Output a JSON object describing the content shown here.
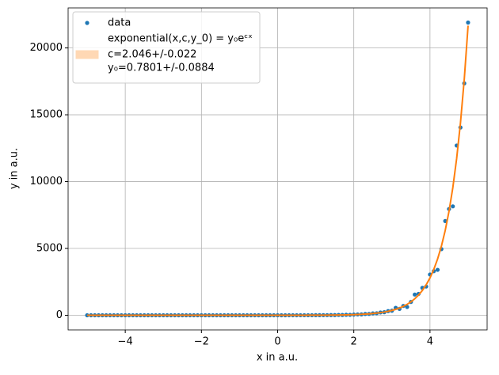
{
  "chart_data": {
    "type": "scatter",
    "xlabel": "x in a.u.",
    "ylabel": "y in a.u.",
    "xlim": [
      -5.5,
      5.5
    ],
    "ylim": [
      -1095,
      22995
    ],
    "xticks": [
      {
        "value": -4,
        "label": "−4"
      },
      {
        "value": -2,
        "label": "−2"
      },
      0,
      2,
      4
    ],
    "yticks": [
      0,
      5000,
      10000,
      15000,
      20000
    ],
    "grid": true,
    "legend": "upper left",
    "x": [
      -5,
      -4.9,
      -4.8,
      -4.7,
      -4.6,
      -4.5,
      -4.4,
      -4.3,
      -4.2,
      -4.1,
      -4,
      -3.9,
      -3.8,
      -3.7,
      -3.6,
      -3.5,
      -3.4,
      -3.3,
      -3.2,
      -3.1,
      -3,
      -2.9,
      -2.8,
      -2.7,
      -2.6,
      -2.5,
      -2.4,
      -2.3,
      -2.2,
      -2.1,
      -2,
      -1.9,
      -1.8,
      -1.7,
      -1.6,
      -1.5,
      -1.4,
      -1.3,
      -1.2,
      -1.1,
      -1,
      -0.9,
      -0.8,
      -0.7,
      -0.6,
      -0.5,
      -0.4,
      -0.3,
      -0.2,
      -0.1,
      0,
      0.1,
      0.2,
      0.3,
      0.4,
      0.5,
      0.6,
      0.7,
      0.8,
      0.9,
      1,
      1.1,
      1.2,
      1.3,
      1.4,
      1.5,
      1.6,
      1.7,
      1.8,
      1.9,
      2,
      2.1,
      2.2,
      2.3,
      2.4,
      2.5,
      2.6,
      2.7,
      2.8,
      2.9,
      3,
      3.1,
      3.2,
      3.3,
      3.4,
      3.5,
      3.6,
      3.7,
      3.8,
      3.9,
      4,
      4.1,
      4.2,
      4.3,
      4.4,
      4.5,
      4.6,
      4.7,
      4.8,
      4.9,
      5
    ],
    "series": [
      {
        "name": "data",
        "kind": "scatter",
        "color": "#1f77b4",
        "values": [
          0,
          0,
          0,
          0,
          0,
          0,
          0,
          0,
          0,
          0,
          0,
          0,
          0,
          0,
          0,
          0,
          0,
          0,
          0,
          0,
          0,
          0,
          0,
          0,
          0,
          0,
          0,
          0,
          0,
          0,
          0,
          0,
          0,
          0,
          0,
          0,
          0,
          0,
          0,
          0,
          0,
          0,
          0,
          0,
          0,
          0,
          0,
          0,
          0,
          0,
          1,
          1,
          1,
          2,
          2,
          2,
          3,
          3,
          4,
          5,
          6,
          7,
          9,
          11,
          14,
          14,
          25,
          20,
          35,
          33,
          50,
          62,
          65,
          95,
          100,
          140,
          150,
          210,
          230,
          310,
          340,
          560,
          480,
          700,
          620,
          1000,
          1550,
          1600,
          2050,
          2150,
          3050,
          3300,
          3400,
          4950,
          7050,
          7950,
          8150,
          12700,
          14050,
          17350,
          21900
        ]
      },
      {
        "name": "exponential(x,c,y_0) = y₀eᶜˣ",
        "kind": "line",
        "color": "#ff7f0e",
        "band_color": "#ffd8b4",
        "values": [
          0,
          0,
          0,
          0,
          0,
          0,
          0,
          0,
          0,
          0,
          0,
          0,
          0,
          0,
          0,
          0,
          0,
          0,
          0,
          0,
          0,
          0,
          0,
          0,
          0,
          0,
          0,
          0,
          0,
          0,
          0,
          0,
          0,
          0,
          0,
          0,
          0,
          0,
          0,
          0,
          0,
          0,
          0,
          0,
          0,
          0,
          0,
          0,
          0,
          0,
          0.8,
          1,
          1.2,
          1.5,
          1.8,
          2.2,
          2.6,
          3.2,
          4,
          4.9,
          6,
          7.3,
          9,
          11,
          13.5,
          16.8,
          20.6,
          25.3,
          31,
          38.1,
          46.7,
          57.3,
          70.3,
          86.3,
          105.9,
          129.9,
          159.4,
          195.6,
          240,
          294.5,
          361.4,
          443.6,
          544.2,
          667.8,
          819.3,
          1005.6,
          1234,
          1514,
          1858,
          2280,
          2797,
          3434,
          4213,
          5171,
          6343,
          7785,
          9556,
          11725,
          14385,
          17653,
          21664
        ]
      }
    ],
    "annotations": [
      "c=2.046+/-0.022",
      "y₀=0.7801+/-0.0884"
    ]
  }
}
